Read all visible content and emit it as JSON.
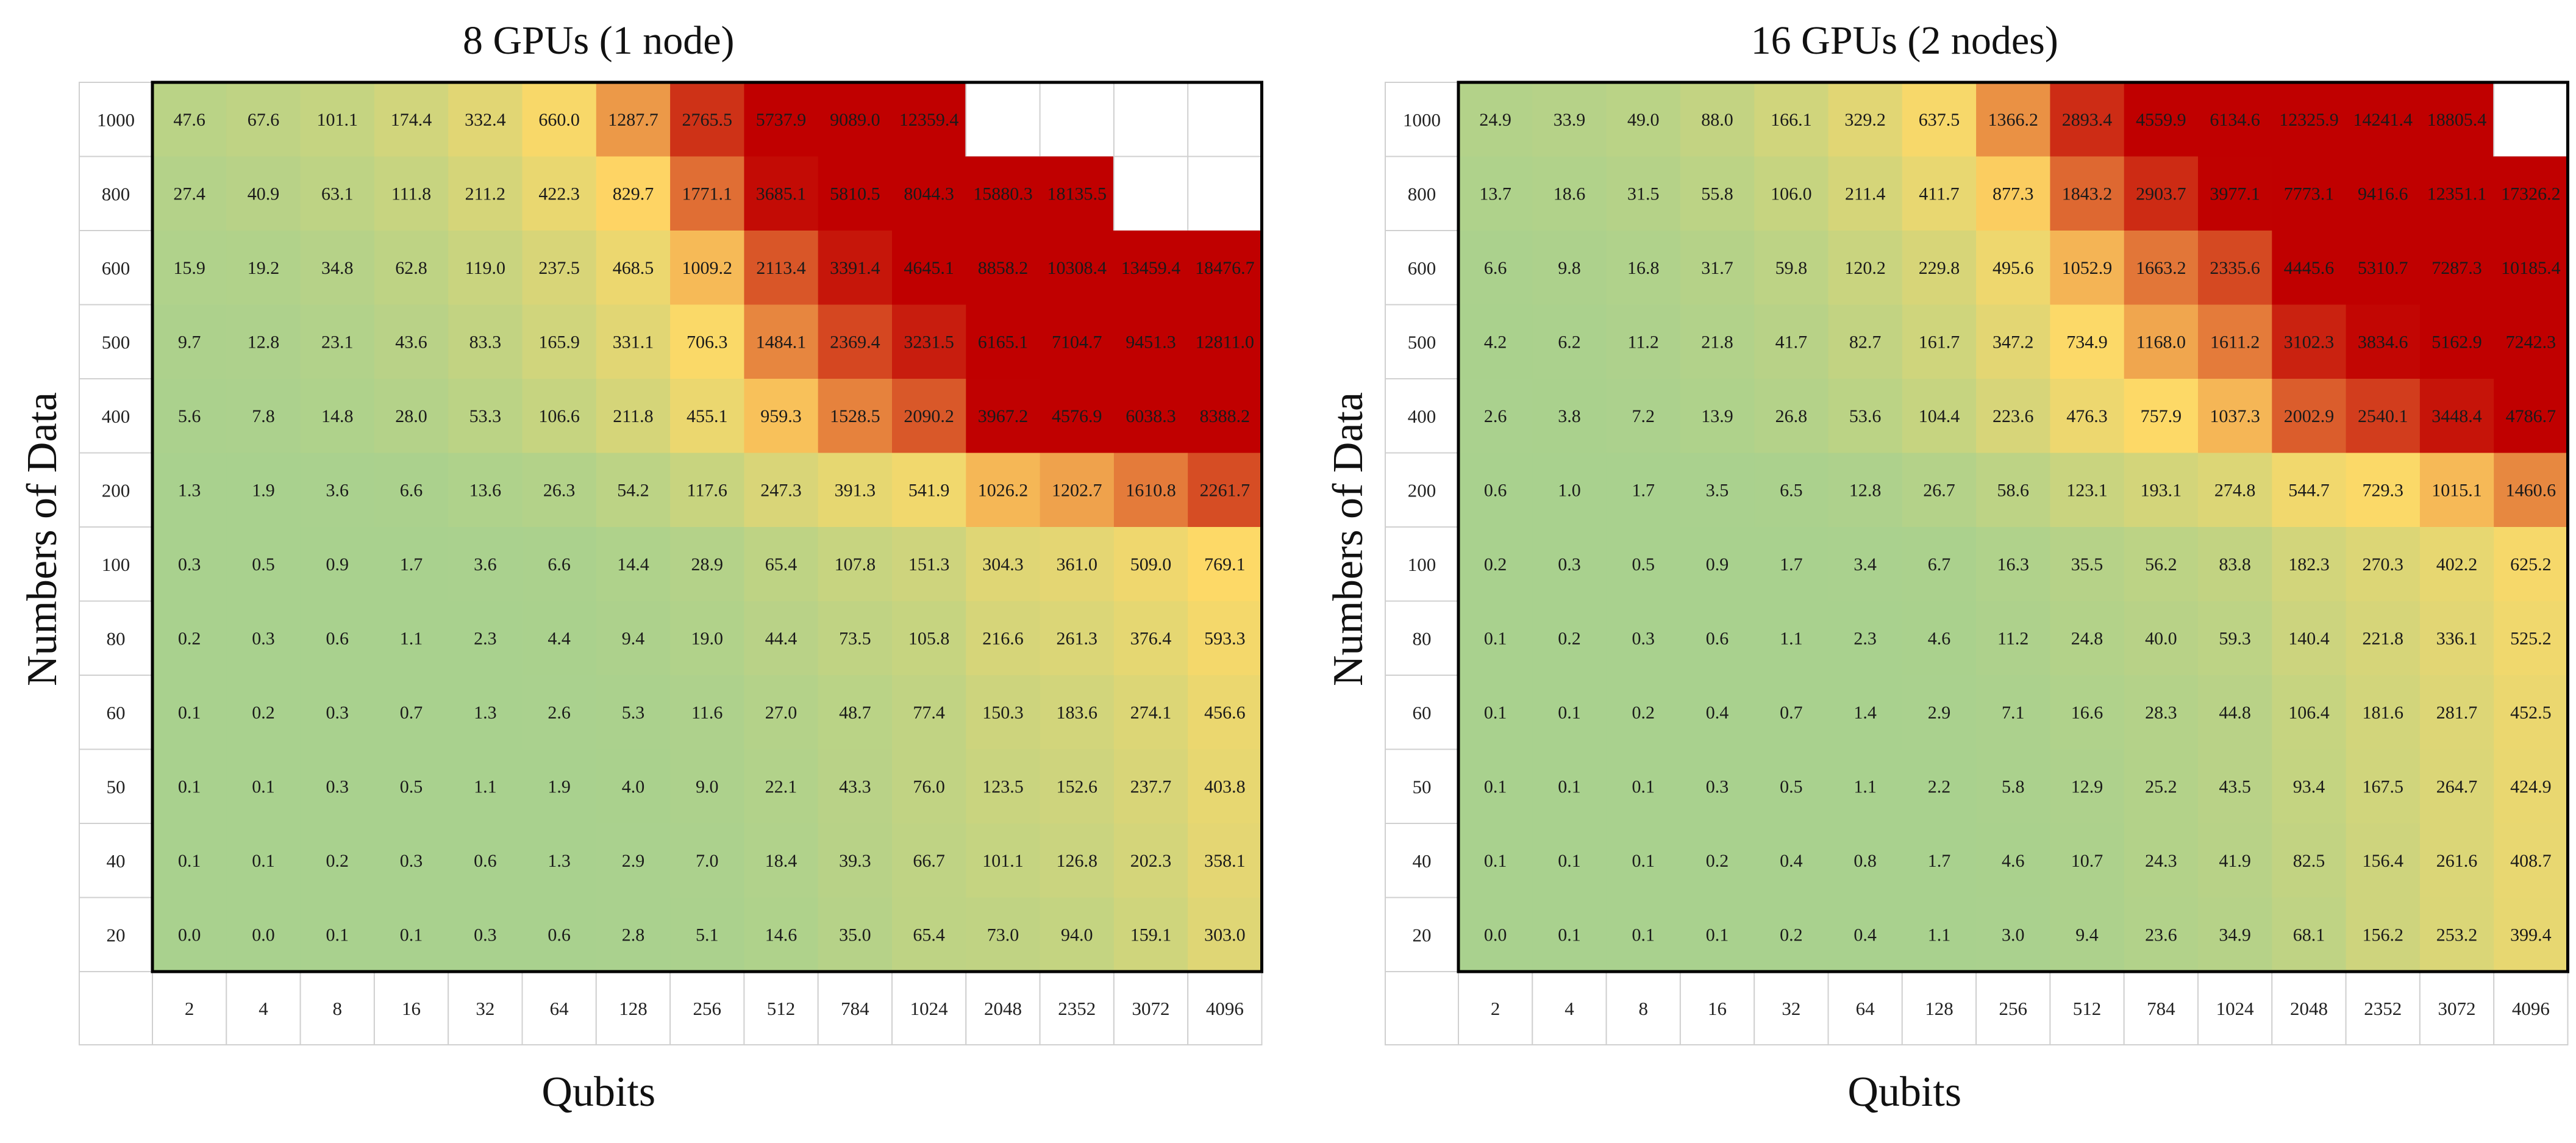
{
  "chart_data": [
    {
      "type": "heatmap",
      "title": "8 GPUs (1 node)",
      "xlabel": "Qubits",
      "ylabel": "Numbers of Data",
      "x_categories": [
        "2",
        "4",
        "8",
        "16",
        "32",
        "64",
        "128",
        "256",
        "512",
        "784",
        "1024",
        "2048",
        "2352",
        "3072",
        "4096"
      ],
      "y_categories": [
        "1000",
        "800",
        "600",
        "500",
        "400",
        "200",
        "100",
        "80",
        "60",
        "50",
        "40",
        "20"
      ],
      "color_scale": {
        "low": "#a9d18e",
        "mid": "#ffd966",
        "high": "#c00000"
      },
      "values": [
        [
          47.6,
          67.6,
          101.1,
          174.4,
          332.4,
          660.0,
          1287.7,
          2765.5,
          5737.9,
          9089.0,
          12359.4,
          null,
          null,
          null,
          null
        ],
        [
          27.4,
          40.9,
          63.1,
          111.8,
          211.2,
          422.3,
          829.7,
          1771.1,
          3685.1,
          5810.5,
          8044.3,
          15880.3,
          18135.5,
          null,
          null
        ],
        [
          15.9,
          19.2,
          34.8,
          62.8,
          119.0,
          237.5,
          468.5,
          1009.2,
          2113.4,
          3391.4,
          4645.1,
          8858.2,
          10308.4,
          13459.4,
          18476.7
        ],
        [
          9.7,
          12.8,
          23.1,
          43.6,
          83.3,
          165.9,
          331.1,
          706.3,
          1484.1,
          2369.4,
          3231.5,
          6165.1,
          7104.7,
          9451.3,
          12811.0
        ],
        [
          5.6,
          7.8,
          14.8,
          28.0,
          53.3,
          106.6,
          211.8,
          455.1,
          959.3,
          1528.5,
          2090.2,
          3967.2,
          4576.9,
          6038.3,
          8388.2
        ],
        [
          1.3,
          1.9,
          3.6,
          6.6,
          13.6,
          26.3,
          54.2,
          117.6,
          247.3,
          391.3,
          541.9,
          1026.2,
          1202.7,
          1610.8,
          2261.7
        ],
        [
          0.3,
          0.5,
          0.9,
          1.7,
          3.6,
          6.6,
          14.4,
          28.9,
          65.4,
          107.8,
          151.3,
          304.3,
          361.0,
          509.0,
          769.1
        ],
        [
          0.2,
          0.3,
          0.6,
          1.1,
          2.3,
          4.4,
          9.4,
          19.0,
          44.4,
          73.5,
          105.8,
          216.6,
          261.3,
          376.4,
          593.3
        ],
        [
          0.1,
          0.2,
          0.3,
          0.7,
          1.3,
          2.6,
          5.3,
          11.6,
          27.0,
          48.7,
          77.4,
          150.3,
          183.6,
          274.1,
          456.6
        ],
        [
          0.1,
          0.1,
          0.3,
          0.5,
          1.1,
          1.9,
          4.0,
          9.0,
          22.1,
          43.3,
          76.0,
          123.5,
          152.6,
          237.7,
          403.8
        ],
        [
          0.1,
          0.1,
          0.2,
          0.3,
          0.6,
          1.3,
          2.9,
          7.0,
          18.4,
          39.3,
          66.7,
          101.1,
          126.8,
          202.3,
          358.1
        ],
        [
          0.0,
          0.0,
          0.1,
          0.1,
          0.3,
          0.6,
          2.8,
          5.1,
          14.6,
          35.0,
          65.4,
          73.0,
          94.0,
          159.1,
          303.0
        ]
      ]
    },
    {
      "type": "heatmap",
      "title": "16 GPUs (2 nodes)",
      "xlabel": "Qubits",
      "ylabel": "Numbers of Data",
      "x_categories": [
        "2",
        "4",
        "8",
        "16",
        "32",
        "64",
        "128",
        "256",
        "512",
        "784",
        "1024",
        "2048",
        "2352",
        "3072",
        "4096"
      ],
      "y_categories": [
        "1000",
        "800",
        "600",
        "500",
        "400",
        "200",
        "100",
        "80",
        "60",
        "50",
        "40",
        "20"
      ],
      "color_scale": {
        "low": "#a9d18e",
        "mid": "#ffd966",
        "high": "#c00000"
      },
      "values": [
        [
          24.9,
          33.9,
          49.0,
          88.0,
          166.1,
          329.2,
          637.5,
          1366.2,
          2893.4,
          4559.9,
          6134.6,
          12325.9,
          14241.4,
          18805.4,
          null
        ],
        [
          13.7,
          18.6,
          31.5,
          55.8,
          106.0,
          211.4,
          411.7,
          877.3,
          1843.2,
          2903.7,
          3977.1,
          7773.1,
          9416.6,
          12351.1,
          17326.2
        ],
        [
          6.6,
          9.8,
          16.8,
          31.7,
          59.8,
          120.2,
          229.8,
          495.6,
          1052.9,
          1663.2,
          2335.6,
          4445.6,
          5310.7,
          7287.3,
          10185.4
        ],
        [
          4.2,
          6.2,
          11.2,
          21.8,
          41.7,
          82.7,
          161.7,
          347.2,
          734.9,
          1168.0,
          1611.2,
          3102.3,
          3834.6,
          5162.9,
          7242.3
        ],
        [
          2.6,
          3.8,
          7.2,
          13.9,
          26.8,
          53.6,
          104.4,
          223.6,
          476.3,
          757.9,
          1037.3,
          2002.9,
          2540.1,
          3448.4,
          4786.7
        ],
        [
          0.6,
          1.0,
          1.7,
          3.5,
          6.5,
          12.8,
          26.7,
          58.6,
          123.1,
          193.1,
          274.8,
          544.7,
          729.3,
          1015.1,
          1460.6
        ],
        [
          0.2,
          0.3,
          0.5,
          0.9,
          1.7,
          3.4,
          6.7,
          16.3,
          35.5,
          56.2,
          83.8,
          182.3,
          270.3,
          402.2,
          625.2
        ],
        [
          0.1,
          0.2,
          0.3,
          0.6,
          1.1,
          2.3,
          4.6,
          11.2,
          24.8,
          40.0,
          59.3,
          140.4,
          221.8,
          336.1,
          525.2
        ],
        [
          0.1,
          0.1,
          0.2,
          0.4,
          0.7,
          1.4,
          2.9,
          7.1,
          16.6,
          28.3,
          44.8,
          106.4,
          181.6,
          281.7,
          452.5
        ],
        [
          0.1,
          0.1,
          0.1,
          0.3,
          0.5,
          1.1,
          2.2,
          5.8,
          12.9,
          25.2,
          43.5,
          93.4,
          167.5,
          264.7,
          424.9
        ],
        [
          0.1,
          0.1,
          0.1,
          0.2,
          0.4,
          0.8,
          1.7,
          4.6,
          10.7,
          24.3,
          41.9,
          82.5,
          156.4,
          261.6,
          408.7
        ],
        [
          0.0,
          0.1,
          0.1,
          0.1,
          0.2,
          0.4,
          1.1,
          3.0,
          9.4,
          23.6,
          34.9,
          68.1,
          156.2,
          253.2,
          399.4
        ]
      ]
    }
  ]
}
